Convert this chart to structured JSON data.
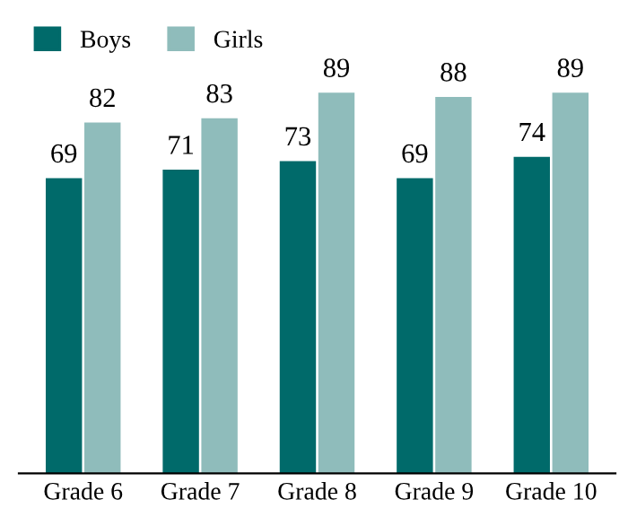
{
  "chart_data": {
    "type": "bar",
    "categories": [
      "Grade 6",
      "Grade 7",
      "Grade 8",
      "Grade 9",
      "Grade 10"
    ],
    "series": [
      {
        "name": "Boys",
        "color": "#006a6a",
        "values": [
          69,
          71,
          73,
          69,
          74
        ]
      },
      {
        "name": "Girls",
        "color": "#8fbcbb",
        "values": [
          82,
          83,
          89,
          88,
          89
        ]
      }
    ],
    "data_labels": true,
    "legend": "top left",
    "grid": false
  }
}
